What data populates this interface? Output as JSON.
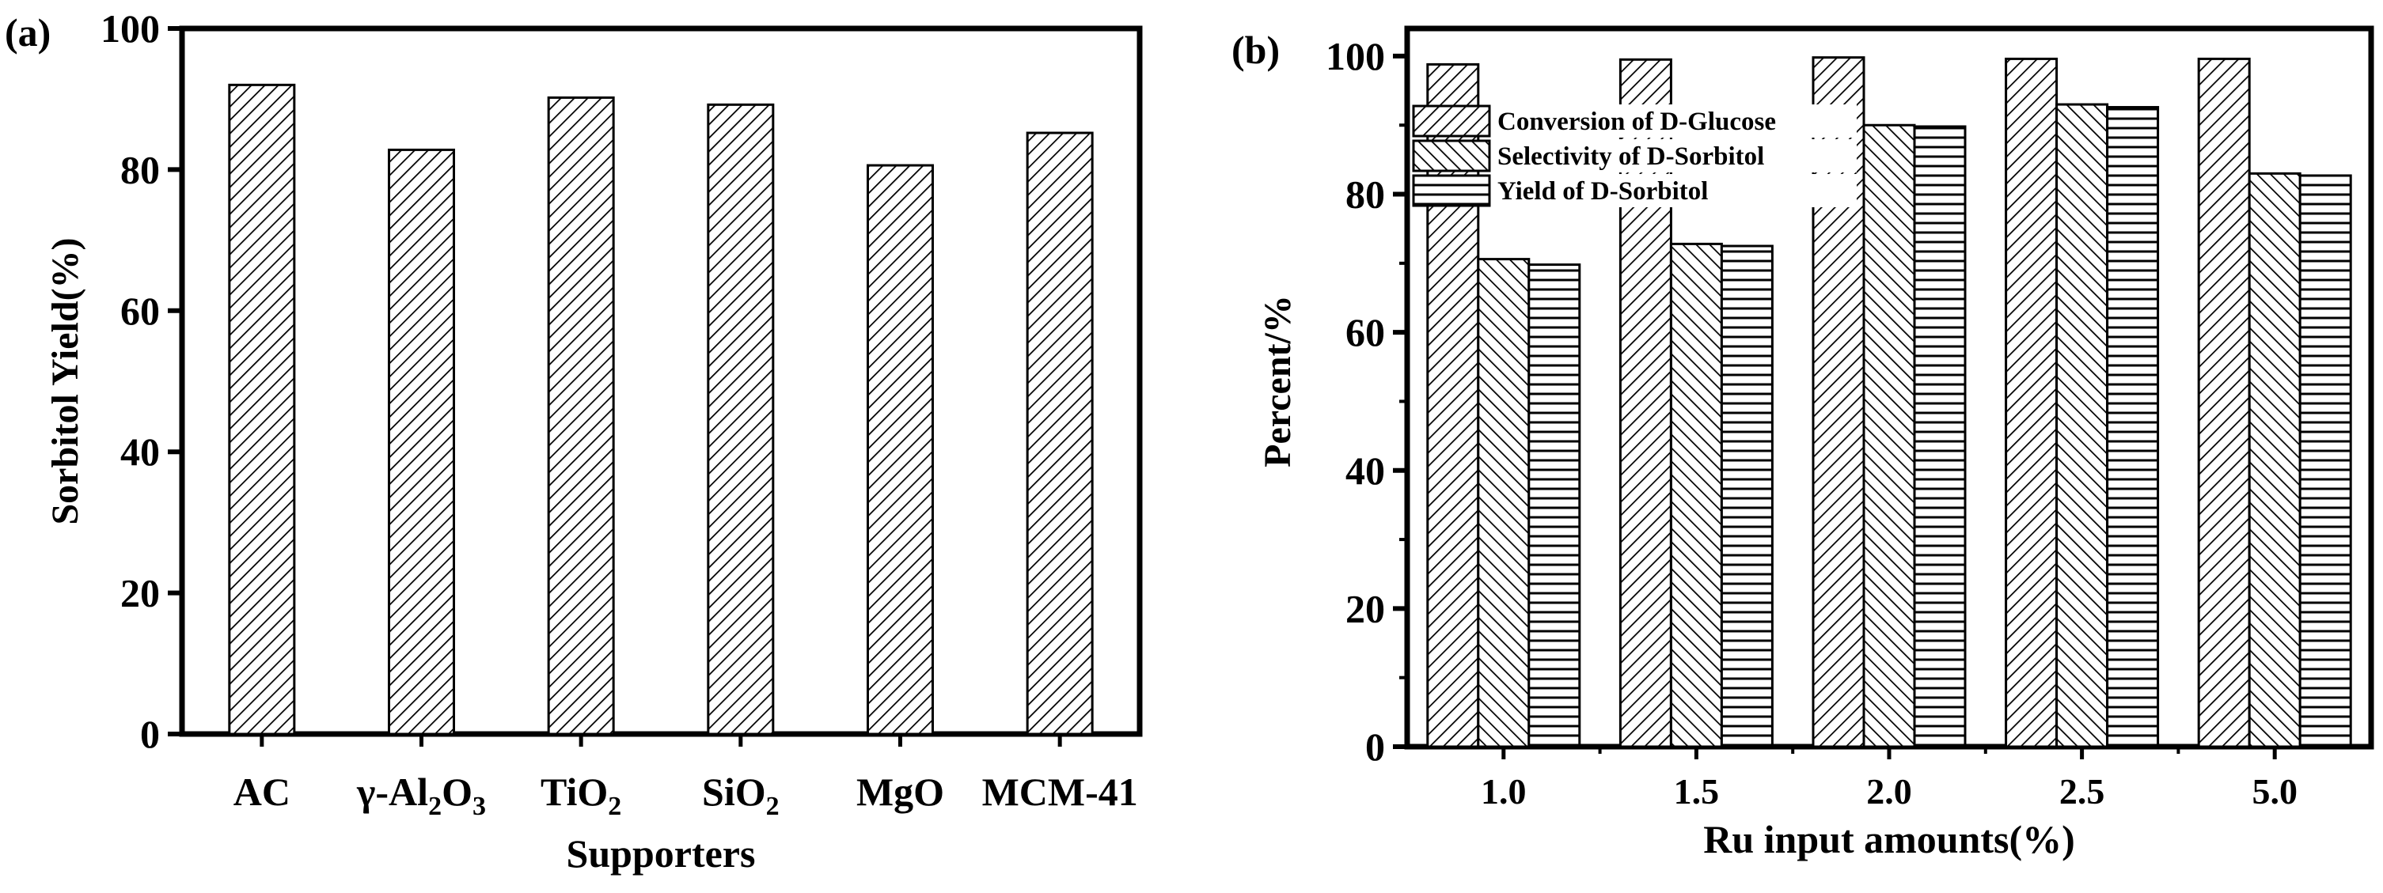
{
  "chart_data": [
    {
      "panel_label": "(a)",
      "type": "bar",
      "title": "",
      "categories": [
        "AC",
        "γ-Al2O3",
        "TiO2",
        "SiO2",
        "MgO",
        "MCM-41"
      ],
      "category_labels": [
        {
          "text": "AC",
          "sub": ""
        },
        {
          "text": "γ-Al",
          "sub": "2",
          "text2": "O",
          "sub2": "3"
        },
        {
          "text": "TiO",
          "sub": "2"
        },
        {
          "text": "SiO",
          "sub": "2"
        },
        {
          "text": "MgO",
          "sub": ""
        },
        {
          "text": "MCM-41",
          "sub": ""
        }
      ],
      "values": [
        92,
        82.8,
        90.2,
        89.2,
        80.6,
        85.2
      ],
      "xlabel": "Supporters",
      "ylabel": "Sorbitol Yield(%)",
      "ylim": [
        0,
        100
      ],
      "yticks": [
        0,
        20,
        40,
        60,
        80,
        100
      ],
      "pattern": "diagonal"
    },
    {
      "panel_label": "(b)",
      "type": "bar",
      "title": "",
      "categories": [
        "1.0",
        "1.5",
        "2.0",
        "2.5",
        "5.0"
      ],
      "series": [
        {
          "name": "Conversion of D-Glucose",
          "pattern": "diagonal",
          "values": [
            98.8,
            99.5,
            99.8,
            99.6,
            99.6
          ]
        },
        {
          "name": "Selectivity of D-Sorbitol",
          "pattern": "backdiagonal",
          "values": [
            70.6,
            72.8,
            90,
            93,
            83
          ]
        },
        {
          "name": "Yield of D-Sorbitol",
          "pattern": "horizontal",
          "values": [
            69.8,
            72.5,
            89.8,
            92.6,
            82.7
          ]
        }
      ],
      "xlabel": "Ru input amounts(%)",
      "ylabel": "Percent/%",
      "ylim": [
        0,
        104
      ],
      "yticks": [
        0,
        20,
        40,
        60,
        80,
        100
      ],
      "legend_position": "top-left"
    }
  ]
}
